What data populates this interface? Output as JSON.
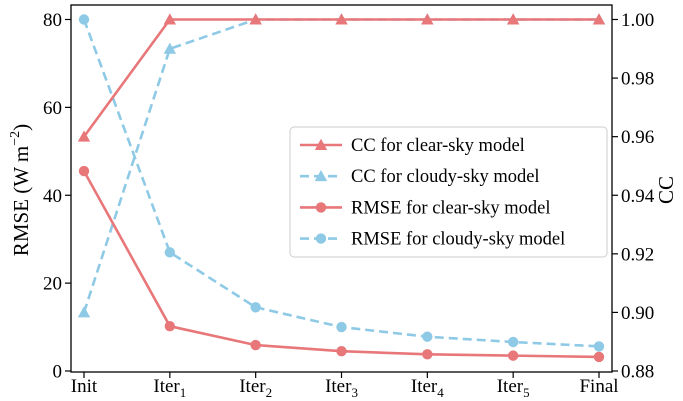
{
  "chart_data": {
    "type": "line",
    "categories": [
      "Init",
      "Iter1",
      "Iter2",
      "Iter3",
      "Iter4",
      "Iter5",
      "Final"
    ],
    "category_labels": [
      {
        "base": "Init",
        "sub": ""
      },
      {
        "base": "Iter",
        "sub": "1"
      },
      {
        "base": "Iter",
        "sub": "2"
      },
      {
        "base": "Iter",
        "sub": "3"
      },
      {
        "base": "Iter",
        "sub": "4"
      },
      {
        "base": "Iter",
        "sub": "5"
      },
      {
        "base": "Final",
        "sub": ""
      }
    ],
    "left_axis": {
      "label_main": "RMSE (W m",
      "label_sup": "−2",
      "label_end": ")",
      "ylim": [
        0,
        80
      ],
      "ticks": [
        0,
        20,
        40,
        60,
        80
      ]
    },
    "right_axis": {
      "label": "CC",
      "ylim": [
        0.88,
        1.0
      ],
      "ticks": [
        0.88,
        0.9,
        0.92,
        0.94,
        0.96,
        0.98,
        1.0
      ],
      "tick_labels": [
        "0.88",
        "0.90",
        "0.92",
        "0.94",
        "0.96",
        "0.98",
        "1.00"
      ]
    },
    "series": [
      {
        "name": "CC for clear-sky model",
        "axis": "right",
        "color": "#e8777a",
        "style": "solid",
        "marker": "triangle",
        "values": [
          0.96,
          1.0,
          1.0,
          1.0,
          1.0,
          1.0,
          1.0
        ]
      },
      {
        "name": "CC for cloudy-sky model",
        "axis": "right",
        "color": "#8ecae6",
        "style": "dashed",
        "marker": "triangle",
        "values": [
          0.9,
          0.99,
          1.0,
          1.0,
          1.0,
          1.0,
          1.0
        ]
      },
      {
        "name": "RMSE for clear-sky model",
        "axis": "left",
        "color": "#e8777a",
        "style": "solid",
        "marker": "circle",
        "values": [
          45.5,
          10.2,
          5.9,
          4.5,
          3.8,
          3.5,
          3.2
        ]
      },
      {
        "name": "RMSE for cloudy-sky model",
        "axis": "left",
        "color": "#8ecae6",
        "style": "dashed",
        "marker": "circle",
        "values": [
          80.0,
          27.0,
          14.5,
          10.0,
          7.8,
          6.6,
          5.6
        ]
      }
    ],
    "legend_position": "center-right",
    "grid": false
  }
}
